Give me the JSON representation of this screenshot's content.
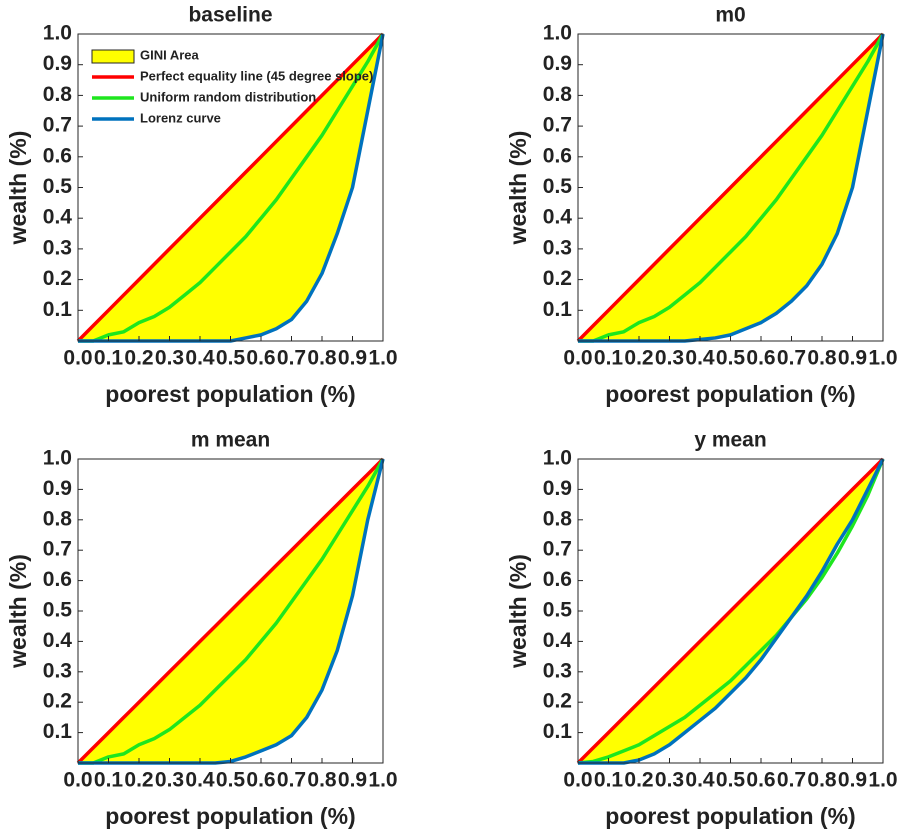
{
  "chart_data": [
    {
      "type": "line",
      "title": "baseline",
      "xlabel": "poorest population (%)",
      "ylabel": "wealth (%)",
      "x": [
        0,
        0.05,
        0.1,
        0.15,
        0.2,
        0.25,
        0.3,
        0.35,
        0.4,
        0.45,
        0.5,
        0.55,
        0.6,
        0.65,
        0.7,
        0.75,
        0.8,
        0.85,
        0.9,
        0.95,
        1
      ],
      "area": {
        "name": "GINI Area",
        "color": "#ffff00"
      },
      "series": [
        {
          "name": "Perfect equality line (45 degree slope)",
          "color": "#ff0000",
          "values": [
            0,
            0.05,
            0.1,
            0.15,
            0.2,
            0.25,
            0.3,
            0.35,
            0.4,
            0.45,
            0.5,
            0.55,
            0.6,
            0.65,
            0.7,
            0.75,
            0.8,
            0.85,
            0.9,
            0.95,
            1
          ]
        },
        {
          "name": "Uniform random distribution",
          "color": "#1ee61e",
          "values": [
            0,
            0,
            0.02,
            0.03,
            0.06,
            0.08,
            0.11,
            0.15,
            0.19,
            0.24,
            0.29,
            0.34,
            0.4,
            0.46,
            0.53,
            0.6,
            0.67,
            0.75,
            0.83,
            0.91,
            1
          ]
        },
        {
          "name": "Lorenz curve",
          "color": "#0072bd",
          "values": [
            0,
            0,
            0,
            0,
            0,
            0,
            0,
            0,
            0,
            0,
            0,
            0.01,
            0.02,
            0.04,
            0.07,
            0.13,
            0.22,
            0.35,
            0.5,
            0.75,
            1
          ]
        }
      ],
      "legend": "upper left",
      "xlim": [
        0,
        1
      ],
      "ylim": [
        0,
        1
      ],
      "xticks": [
        {
          "value": 0,
          "label": "0.0"
        },
        0.1,
        0.2,
        0.3,
        0.4,
        0.5,
        0.6,
        0.7,
        0.8,
        0.9,
        {
          "value": 1,
          "label": "1.0"
        }
      ],
      "yticks": [
        0.1,
        0.2,
        0.3,
        0.4,
        0.5,
        0.6,
        0.7,
        0.8,
        0.9,
        {
          "value": 1,
          "label": "1.0"
        }
      ]
    },
    {
      "type": "line",
      "title": "m0",
      "xlabel": "poorest population (%)",
      "ylabel": "wealth (%)",
      "x": [
        0,
        0.05,
        0.1,
        0.15,
        0.2,
        0.25,
        0.3,
        0.35,
        0.4,
        0.45,
        0.5,
        0.55,
        0.6,
        0.65,
        0.7,
        0.75,
        0.8,
        0.85,
        0.9,
        0.95,
        1
      ],
      "area": {
        "color": "#ffff00"
      },
      "series": [
        {
          "color": "#ff0000",
          "values": [
            0,
            0.05,
            0.1,
            0.15,
            0.2,
            0.25,
            0.3,
            0.35,
            0.4,
            0.45,
            0.5,
            0.55,
            0.6,
            0.65,
            0.7,
            0.75,
            0.8,
            0.85,
            0.9,
            0.95,
            1
          ]
        },
        {
          "color": "#1ee61e",
          "values": [
            0,
            0,
            0.02,
            0.03,
            0.06,
            0.08,
            0.11,
            0.15,
            0.19,
            0.24,
            0.29,
            0.34,
            0.4,
            0.46,
            0.53,
            0.6,
            0.67,
            0.75,
            0.83,
            0.91,
            1
          ]
        },
        {
          "color": "#0072bd",
          "values": [
            0,
            0,
            0,
            0,
            0,
            0,
            0,
            0,
            0.005,
            0.01,
            0.02,
            0.04,
            0.06,
            0.09,
            0.13,
            0.18,
            0.25,
            0.35,
            0.5,
            0.75,
            1
          ]
        }
      ],
      "xlim": [
        0,
        1
      ],
      "ylim": [
        0,
        1
      ],
      "xticks": [
        {
          "value": 0,
          "label": "0.0"
        },
        0.1,
        0.2,
        0.3,
        0.4,
        0.5,
        0.6,
        0.7,
        0.8,
        0.9,
        {
          "value": 1,
          "label": "1.0"
        }
      ],
      "yticks": [
        0.1,
        0.2,
        0.3,
        0.4,
        0.5,
        0.6,
        0.7,
        0.8,
        0.9,
        {
          "value": 1,
          "label": "1.0"
        }
      ]
    },
    {
      "type": "line",
      "title": "m mean",
      "xlabel": "poorest population (%)",
      "ylabel": "wealth (%)",
      "x": [
        0,
        0.05,
        0.1,
        0.15,
        0.2,
        0.25,
        0.3,
        0.35,
        0.4,
        0.45,
        0.5,
        0.55,
        0.6,
        0.65,
        0.7,
        0.75,
        0.8,
        0.85,
        0.9,
        0.95,
        1
      ],
      "area": {
        "color": "#ffff00"
      },
      "series": [
        {
          "color": "#ff0000",
          "values": [
            0,
            0.05,
            0.1,
            0.15,
            0.2,
            0.25,
            0.3,
            0.35,
            0.4,
            0.45,
            0.5,
            0.55,
            0.6,
            0.65,
            0.7,
            0.75,
            0.8,
            0.85,
            0.9,
            0.95,
            1
          ]
        },
        {
          "color": "#1ee61e",
          "values": [
            0,
            0,
            0.02,
            0.03,
            0.06,
            0.08,
            0.11,
            0.15,
            0.19,
            0.24,
            0.29,
            0.34,
            0.4,
            0.46,
            0.53,
            0.6,
            0.67,
            0.75,
            0.83,
            0.91,
            1
          ]
        },
        {
          "color": "#0072bd",
          "values": [
            0,
            0,
            0,
            0,
            0,
            0,
            0,
            0,
            0,
            0,
            0.005,
            0.02,
            0.04,
            0.06,
            0.09,
            0.15,
            0.24,
            0.37,
            0.55,
            0.8,
            1
          ]
        }
      ],
      "xlim": [
        0,
        1
      ],
      "ylim": [
        0,
        1
      ],
      "xticks": [
        {
          "value": 0,
          "label": "0.0"
        },
        0.1,
        0.2,
        0.3,
        0.4,
        0.5,
        0.6,
        0.7,
        0.8,
        0.9,
        {
          "value": 1,
          "label": "1.0"
        }
      ],
      "yticks": [
        0.1,
        0.2,
        0.3,
        0.4,
        0.5,
        0.6,
        0.7,
        0.8,
        0.9,
        {
          "value": 1,
          "label": "1.0"
        }
      ]
    },
    {
      "type": "line",
      "title": "y mean",
      "xlabel": "poorest population (%)",
      "ylabel": "wealth (%)",
      "x": [
        0,
        0.05,
        0.1,
        0.15,
        0.2,
        0.25,
        0.3,
        0.35,
        0.4,
        0.45,
        0.5,
        0.55,
        0.6,
        0.65,
        0.7,
        0.75,
        0.8,
        0.85,
        0.9,
        0.95,
        1
      ],
      "area": {
        "color": "#ffff00"
      },
      "series": [
        {
          "color": "#ff0000",
          "values": [
            0,
            0.05,
            0.1,
            0.15,
            0.2,
            0.25,
            0.3,
            0.35,
            0.4,
            0.45,
            0.5,
            0.55,
            0.6,
            0.65,
            0.7,
            0.75,
            0.8,
            0.85,
            0.9,
            0.95,
            1
          ]
        },
        {
          "color": "#1ee61e",
          "values": [
            0,
            0.005,
            0.02,
            0.04,
            0.06,
            0.09,
            0.12,
            0.15,
            0.19,
            0.23,
            0.27,
            0.32,
            0.37,
            0.42,
            0.48,
            0.54,
            0.61,
            0.69,
            0.78,
            0.88,
            1
          ]
        },
        {
          "color": "#0072bd",
          "values": [
            0,
            0,
            0,
            0,
            0.01,
            0.03,
            0.06,
            0.1,
            0.14,
            0.18,
            0.23,
            0.28,
            0.34,
            0.41,
            0.48,
            0.55,
            0.63,
            0.72,
            0.8,
            0.9,
            1
          ]
        }
      ],
      "xlim": [
        0,
        1
      ],
      "ylim": [
        0,
        1
      ],
      "xticks": [
        {
          "value": 0,
          "label": "0.0"
        },
        0.1,
        0.2,
        0.3,
        0.4,
        0.5,
        0.6,
        0.7,
        0.8,
        0.9,
        {
          "value": 1,
          "label": "1.0"
        }
      ],
      "yticks": [
        0.1,
        0.2,
        0.3,
        0.4,
        0.5,
        0.6,
        0.7,
        0.8,
        0.9,
        {
          "value": 1,
          "label": "1.0"
        }
      ]
    }
  ]
}
